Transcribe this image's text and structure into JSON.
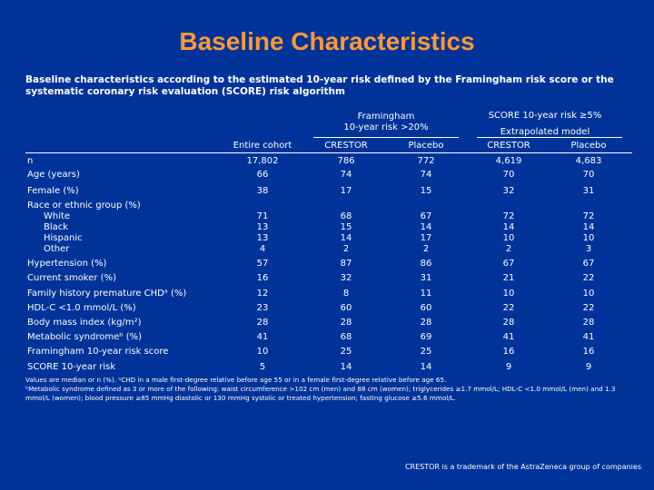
{
  "title": "Baseline Characteristics",
  "subtitle": "Baseline characteristics according to the estimated 10-year risk defined by the Framingham risk score or the systematic coronary risk evaluation (SCORE) risk algorithm",
  "groups": {
    "framingham_line1": "Framingham",
    "framingham_line2": "10-year risk >20%",
    "score_line1": "SCORE 10-year risk ≥5%",
    "score_line2": "Extrapolated model"
  },
  "columns": [
    "Entire cohort",
    "CRESTOR",
    "Placebo",
    "CRESTOR",
    "Placebo"
  ],
  "rows": [
    {
      "label": "n",
      "values": [
        "17,802",
        "786",
        "772",
        "4,619",
        "4,683"
      ]
    },
    {
      "label": "Age (years)",
      "values": [
        "66",
        "74",
        "74",
        "70",
        "70"
      ]
    },
    {
      "label": "Female (%)",
      "values": [
        "38",
        "17",
        "15",
        "32",
        "31"
      ]
    },
    {
      "label": "Hypertension (%)",
      "values": [
        "57",
        "87",
        "86",
        "67",
        "67"
      ]
    },
    {
      "label": "Current smoker (%)",
      "values": [
        "16",
        "32",
        "31",
        "21",
        "22"
      ]
    },
    {
      "label": "Family history premature CHDᵃ (%)",
      "values": [
        "12",
        "8",
        "11",
        "10",
        "10"
      ]
    },
    {
      "label": "HDL-C <1.0 mmol/L (%)",
      "values": [
        "23",
        "60",
        "60",
        "22",
        "22"
      ]
    },
    {
      "label": "Body mass index (kg/m²)",
      "values": [
        "28",
        "28",
        "28",
        "28",
        "28"
      ]
    },
    {
      "label": "Metabolic syndromeᵇ (%)",
      "values": [
        "41",
        "68",
        "69",
        "41",
        "41"
      ]
    },
    {
      "label": "Framingham 10-year risk score",
      "values": [
        "10",
        "25",
        "25",
        "16",
        "16"
      ]
    },
    {
      "label": "SCORE 10-year risk",
      "values": [
        "5",
        "14",
        "14",
        "9",
        "9"
      ]
    }
  ],
  "race": {
    "label": "Race or ethnic group (%)",
    "sub": [
      {
        "label": "White",
        "values": [
          "71",
          "68",
          "67",
          "72",
          "72"
        ]
      },
      {
        "label": "Black",
        "values": [
          "13",
          "15",
          "14",
          "14",
          "14"
        ]
      },
      {
        "label": "Hispanic",
        "values": [
          "13",
          "14",
          "17",
          "10",
          "10"
        ]
      },
      {
        "label": "Other",
        "values": [
          "4",
          "2",
          "2",
          "2",
          "3"
        ]
      }
    ]
  },
  "notes": {
    "line1": "Values are median or n (%). ᵃCHD in a male first-degree relative before age 55 or in a female first-degree relative before age 65.",
    "line2": "ᵇMetabolic syndrome defined as 3 or more of the following: waist circumference >102 cm (men) and 88 cm (women); triglycerides ≥1.7 mmol/L; HDL-C <1.0 mmol/L (men) and 1.3 mmol/L (women); blood pressure ≥85 mmHg diastolic or 130 mmHg systolic or treated hypertension; fasting glucose ≥5.6 mmol/L."
  },
  "trademark": "CRESTOR is a trademark of the AstraZeneca group of companies",
  "colors": {
    "background": "#003399",
    "title": "#ff9933",
    "text": "#ffffff"
  }
}
